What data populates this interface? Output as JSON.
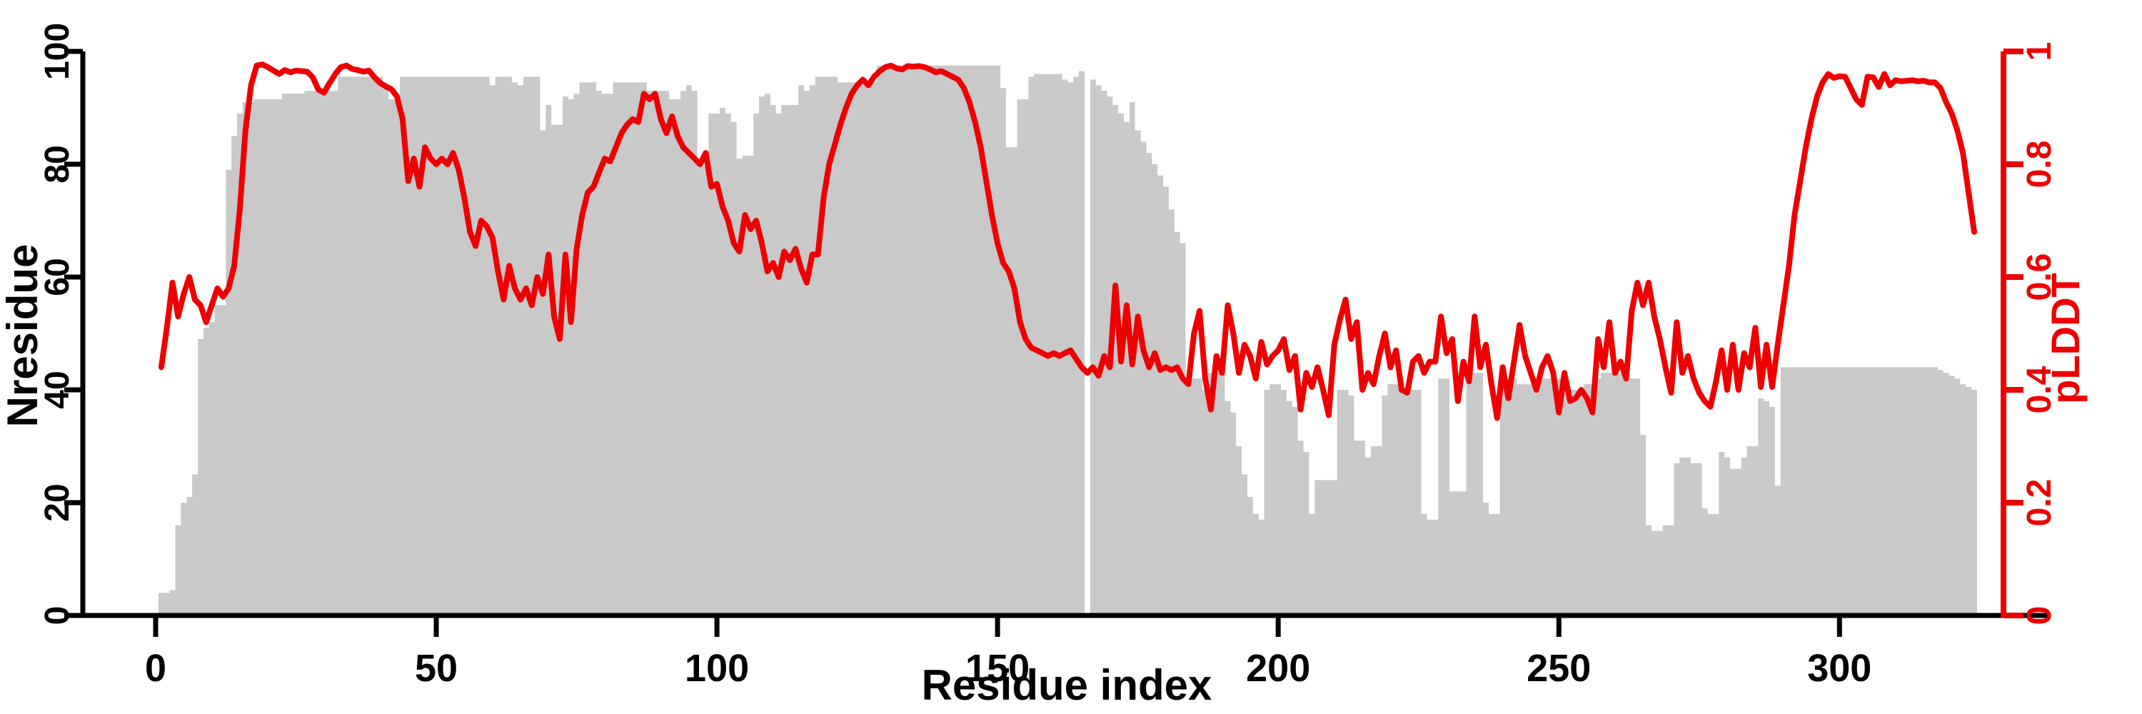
{
  "figure": {
    "background": "#ffffff",
    "bar_color": "#c9c9c9",
    "line_color": "#ee0000",
    "axis_color": "#000000",
    "right_axis_color": "#ee0000"
  },
  "chart_data": {
    "type": "combo",
    "subtype": [
      "bar",
      "line"
    ],
    "title": "",
    "xlabel": "Residue index",
    "ylabel_left": "Nresidue",
    "ylabel_right": "pLDDT",
    "x_start": 1,
    "x_step": 1,
    "x_description": "residue index, one value per residue from 1 to 324",
    "xlim": [
      -14,
      330
    ],
    "ylim_left": [
      0,
      100
    ],
    "ylim_right": [
      0,
      1
    ],
    "grid": false,
    "legend": "none",
    "x_ticks": [
      0,
      50,
      100,
      150,
      200,
      250,
      300
    ],
    "y_ticks_left": [
      "0",
      "20",
      "40",
      "60",
      "80",
      "100"
    ],
    "y_ticks_right": [
      "0",
      "0.2",
      "0.4",
      "0.6",
      "0.8",
      "1"
    ],
    "series": [
      {
        "name": "Nresidue",
        "type": "bar",
        "axis": "left",
        "color": "#c9c9c9",
        "values": [
          4,
          4,
          4.5,
          16,
          20,
          21,
          25,
          49,
          51,
          52,
          55,
          55,
          79,
          85,
          89,
          91,
          91,
          91.5,
          91.5,
          91.5,
          91.5,
          91.5,
          92.5,
          92.5,
          92.5,
          92.5,
          93,
          93,
          93,
          93,
          93,
          93,
          95.5,
          95.5,
          95.5,
          95.5,
          95.5,
          95.5,
          95.5,
          95.5,
          94,
          91.5,
          91.5,
          95.5,
          95.5,
          95.5,
          95.5,
          95.5,
          95.5,
          95.5,
          95.5,
          95.5,
          95.5,
          95.5,
          95.5,
          95.5,
          95.5,
          95.5,
          95.5,
          94,
          95.5,
          95.5,
          95.5,
          94.5,
          94,
          95.5,
          95.5,
          95.5,
          86,
          90.5,
          87,
          87,
          92,
          91.5,
          92.5,
          94.5,
          94.5,
          94.5,
          93,
          92.5,
          92.5,
          94.5,
          94.5,
          94.5,
          94.5,
          94.5,
          94.5,
          93,
          93,
          93,
          93,
          91.5,
          91.5,
          93,
          94,
          93,
          80,
          79.5,
          89,
          89,
          90,
          89,
          87.5,
          81,
          81.5,
          81.5,
          89,
          92,
          92.5,
          90.5,
          89,
          90.5,
          90.5,
          90.5,
          94,
          93,
          94,
          95.5,
          95.5,
          95.5,
          95.5,
          94.5,
          94.5,
          94.5,
          94.5,
          94.5,
          94.5,
          94.5,
          97.5,
          97.5,
          97.5,
          97.5,
          97.5,
          97.5,
          97.5,
          97.5,
          97.5,
          97.5,
          97.5,
          97.5,
          97.5,
          97.5,
          97.5,
          97.5,
          97.5,
          97.5,
          97.5,
          97.5,
          97.5,
          97.5,
          93.5,
          83,
          83,
          91.5,
          91.5,
          95.5,
          96,
          96,
          96,
          96,
          96,
          95,
          94.5,
          95.5,
          96.5,
          0,
          95,
          94,
          93,
          92,
          90.5,
          89,
          87.5,
          91,
          86,
          84,
          82,
          80,
          78,
          76,
          72,
          68,
          66,
          42,
          42,
          42,
          40,
          43,
          43,
          43,
          38,
          36,
          30,
          25,
          21,
          18,
          17,
          40,
          41,
          41,
          40,
          38,
          37,
          31,
          29,
          18,
          24,
          24,
          24,
          24,
          40,
          40,
          39,
          31,
          31,
          28,
          30,
          30,
          39,
          41,
          41,
          40,
          40,
          40,
          40,
          18,
          17,
          17,
          42,
          42,
          22,
          22,
          22,
          43,
          43,
          43,
          20,
          18,
          18,
          42,
          42,
          42,
          41,
          41,
          41,
          41,
          42,
          42,
          42,
          42,
          42,
          40,
          40,
          40,
          41,
          41,
          42,
          43,
          43,
          43,
          43,
          43,
          42,
          42,
          32,
          16,
          15,
          15,
          16,
          16,
          27,
          28,
          28,
          27,
          27,
          19,
          18,
          18,
          29,
          28,
          26,
          26,
          28,
          30,
          30,
          38.5,
          38,
          37,
          23,
          44,
          44,
          44,
          44,
          44,
          44,
          44,
          44,
          44,
          44,
          44,
          44,
          44,
          44,
          44,
          44,
          44,
          44,
          44,
          44,
          44,
          44,
          44,
          44,
          44,
          44,
          44,
          44,
          43.5,
          43,
          42.5,
          42,
          41,
          40.5,
          40
        ]
      },
      {
        "name": "pLDDT",
        "type": "line",
        "axis": "right",
        "color": "#ee0000",
        "values": [
          0.44,
          0.51,
          0.59,
          0.53,
          0.57,
          0.6,
          0.56,
          0.55,
          0.52,
          0.55,
          0.58,
          0.565,
          0.58,
          0.62,
          0.72,
          0.86,
          0.94,
          0.975,
          0.977,
          0.972,
          0.966,
          0.96,
          0.967,
          0.963,
          0.966,
          0.965,
          0.964,
          0.954,
          0.932,
          0.927,
          0.944,
          0.96,
          0.972,
          0.975,
          0.969,
          0.967,
          0.964,
          0.966,
          0.954,
          0.944,
          0.938,
          0.933,
          0.92,
          0.88,
          0.77,
          0.81,
          0.76,
          0.83,
          0.81,
          0.8,
          0.81,
          0.8,
          0.82,
          0.79,
          0.74,
          0.68,
          0.655,
          0.7,
          0.69,
          0.67,
          0.61,
          0.56,
          0.62,
          0.58,
          0.56,
          0.58,
          0.55,
          0.6,
          0.57,
          0.64,
          0.53,
          0.49,
          0.64,
          0.52,
          0.65,
          0.71,
          0.75,
          0.76,
          0.785,
          0.81,
          0.805,
          0.83,
          0.855,
          0.87,
          0.88,
          0.875,
          0.925,
          0.915,
          0.925,
          0.88,
          0.855,
          0.885,
          0.85,
          0.83,
          0.82,
          0.81,
          0.8,
          0.82,
          0.76,
          0.765,
          0.725,
          0.7,
          0.66,
          0.645,
          0.71,
          0.685,
          0.7,
          0.66,
          0.61,
          0.625,
          0.6,
          0.645,
          0.63,
          0.65,
          0.615,
          0.59,
          0.64,
          0.64,
          0.74,
          0.8,
          0.835,
          0.87,
          0.9,
          0.925,
          0.94,
          0.95,
          0.94,
          0.955,
          0.965,
          0.972,
          0.975,
          0.97,
          0.968,
          0.974,
          0.973,
          0.974,
          0.972,
          0.968,
          0.963,
          0.965,
          0.96,
          0.955,
          0.95,
          0.935,
          0.91,
          0.875,
          0.83,
          0.77,
          0.71,
          0.66,
          0.625,
          0.61,
          0.58,
          0.52,
          0.49,
          0.475,
          0.47,
          0.465,
          0.46,
          0.465,
          0.46,
          0.465,
          0.47,
          0.455,
          0.44,
          0.43,
          0.44,
          0.425,
          0.46,
          0.44,
          0.585,
          0.45,
          0.55,
          0.445,
          0.53,
          0.47,
          0.44,
          0.465,
          0.435,
          0.44,
          0.435,
          0.44,
          0.42,
          0.41,
          0.5,
          0.54,
          0.42,
          0.365,
          0.46,
          0.43,
          0.55,
          0.5,
          0.43,
          0.48,
          0.46,
          0.42,
          0.485,
          0.445,
          0.46,
          0.47,
          0.49,
          0.435,
          0.46,
          0.365,
          0.43,
          0.405,
          0.44,
          0.4,
          0.355,
          0.48,
          0.525,
          0.56,
          0.49,
          0.52,
          0.4,
          0.43,
          0.41,
          0.46,
          0.5,
          0.44,
          0.47,
          0.4,
          0.395,
          0.45,
          0.46,
          0.43,
          0.45,
          0.45,
          0.53,
          0.465,
          0.49,
          0.38,
          0.45,
          0.415,
          0.53,
          0.44,
          0.48,
          0.41,
          0.35,
          0.44,
          0.385,
          0.45,
          0.515,
          0.46,
          0.43,
          0.4,
          0.44,
          0.46,
          0.43,
          0.36,
          0.43,
          0.38,
          0.385,
          0.4,
          0.385,
          0.36,
          0.49,
          0.44,
          0.52,
          0.43,
          0.45,
          0.42,
          0.54,
          0.59,
          0.55,
          0.59,
          0.53,
          0.49,
          0.44,
          0.395,
          0.52,
          0.43,
          0.46,
          0.42,
          0.395,
          0.38,
          0.37,
          0.415,
          0.47,
          0.4,
          0.48,
          0.4,
          0.465,
          0.44,
          0.51,
          0.405,
          0.48,
          0.405,
          0.48,
          0.55,
          0.62,
          0.71,
          0.77,
          0.83,
          0.88,
          0.92,
          0.945,
          0.96,
          0.953,
          0.956,
          0.955,
          0.935,
          0.915,
          0.905,
          0.955,
          0.954,
          0.937,
          0.96,
          0.94,
          0.949,
          0.947,
          0.948,
          0.949,
          0.947,
          0.948,
          0.945,
          0.945,
          0.935,
          0.91,
          0.89,
          0.86,
          0.82,
          0.75,
          0.68
        ]
      }
    ]
  }
}
